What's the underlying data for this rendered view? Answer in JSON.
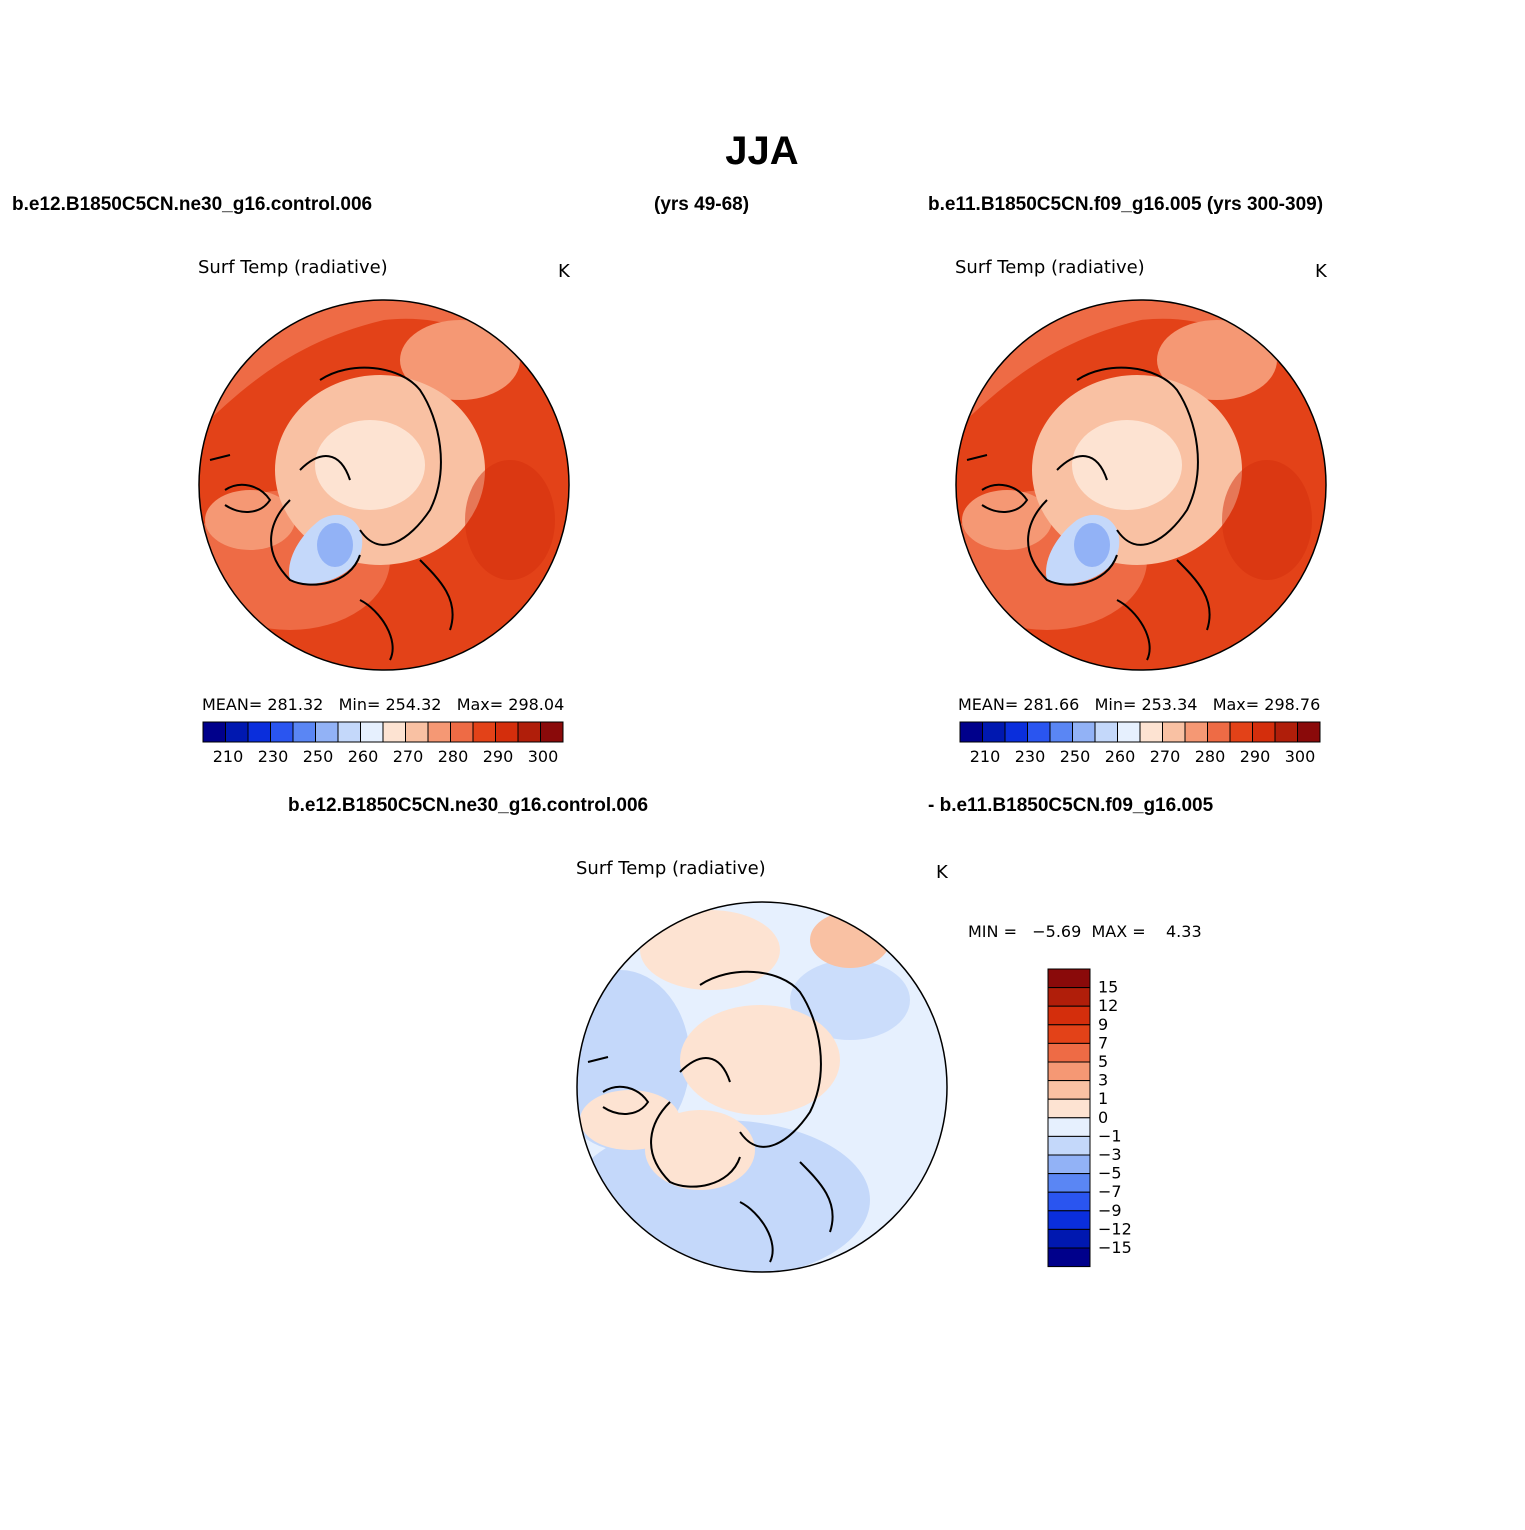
{
  "page": {
    "title": "JJA"
  },
  "headers": {
    "case1": "b.e12.B1850C5CN.ne30_g16.control.006",
    "case1_years": "(yrs 49-68)",
    "case2": "b.e11.B1850C5CN.f09_g16.005 (yrs 300-309)",
    "diff_case1": "b.e12.B1850C5CN.ne30_g16.control.006",
    "diff_case2": "- b.e11.B1850C5CN.f09_g16.005"
  },
  "panels": [
    {
      "id": "case1",
      "variable": "Surf Temp (radiative)",
      "units": "K",
      "stats_text": "MEAN= 281.32   Min= 254.32   Max= 298.04",
      "mean": 281.32,
      "min": 254.32,
      "max": 298.04
    },
    {
      "id": "case2",
      "variable": "Surf Temp (radiative)",
      "units": "K",
      "stats_text": "MEAN= 281.66   Min= 253.34   Max= 298.76",
      "mean": 281.66,
      "min": 253.34,
      "max": 298.76
    },
    {
      "id": "difference",
      "variable": "Surf Temp (radiative)",
      "units": "K",
      "stats_text": "MIN =   −5.69  MAX =    4.33",
      "min": -5.69,
      "max": 4.33
    }
  ],
  "colorbars": {
    "absolute": {
      "colors": [
        "#00008b",
        "#0018b0",
        "#0a2edc",
        "#2a55f0",
        "#5a86f4",
        "#92b2f6",
        "#c4d8fa",
        "#e6f0fe",
        "#fde3d2",
        "#f9c1a3",
        "#f59874",
        "#ee6b45",
        "#e34218",
        "#d42e0c",
        "#b01e0a",
        "#8a0a0a"
      ],
      "tick_labels": [
        "210",
        "230",
        "250",
        "260",
        "270",
        "280",
        "290",
        "300"
      ]
    },
    "difference": {
      "colors": [
        "#00008b",
        "#0018b0",
        "#0a2edc",
        "#2a55f0",
        "#5a86f4",
        "#92b2f6",
        "#c4d8fa",
        "#e6f0fe",
        "#fde3d2",
        "#f9c1a3",
        "#f59874",
        "#ee6b45",
        "#e34218",
        "#d42e0c",
        "#b01e0a",
        "#8a0a0a"
      ],
      "tick_labels": [
        "15",
        "12",
        "9",
        "7",
        "5",
        "3",
        "1",
        "0",
        "−1",
        "−3",
        "−5",
        "−7",
        "−9",
        "−12",
        "−15"
      ]
    }
  },
  "map_colors": {
    "ocean_warm": "#e34218",
    "mid_warm": "#ee6b45",
    "land_warm": "#f59874",
    "arctic": "#fde3d2",
    "cool": "#c4d8fa",
    "cold": "#92b2f6",
    "diff_base": "#e6f0fe",
    "diff_pos": "#fde3d2",
    "diff_neg": "#c4d8fa"
  }
}
